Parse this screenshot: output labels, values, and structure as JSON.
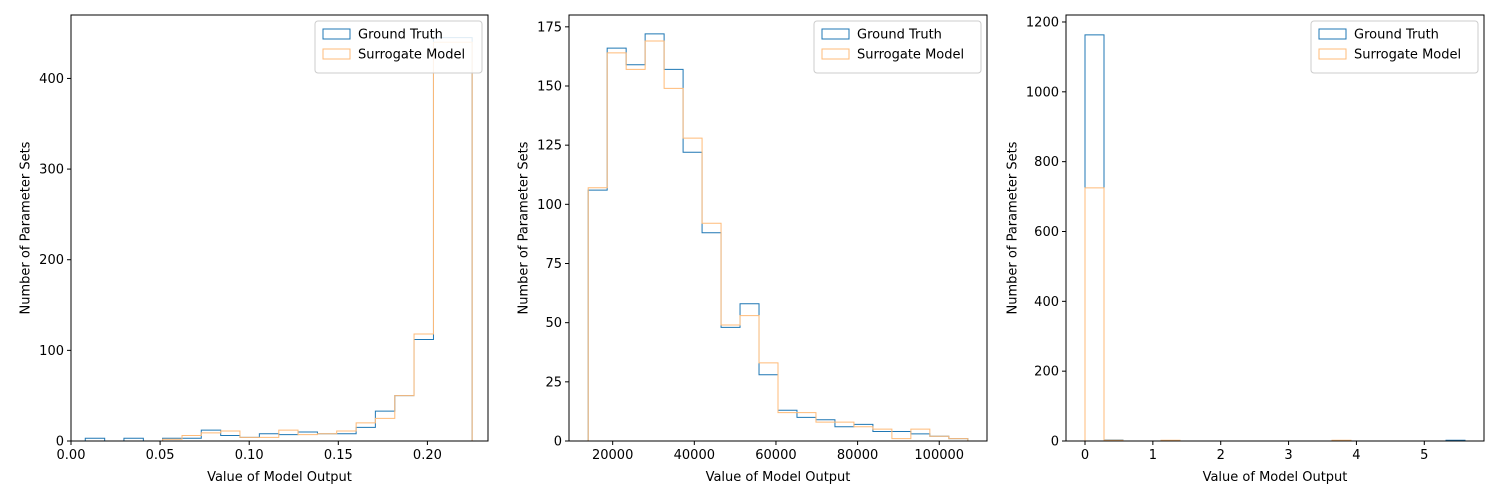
{
  "colors": {
    "ground_truth": "#1f77b4",
    "surrogate": "#ffbb78",
    "axis": "#000000"
  },
  "chart_data": [
    {
      "type": "histogram-step",
      "xlabel": "Value of Model Output",
      "ylabel": "Number of Parameter Sets",
      "xlim": [
        0.0,
        0.234
      ],
      "ylim": [
        0,
        470
      ],
      "xticks": [
        0.0,
        0.05,
        0.1,
        0.15,
        0.2
      ],
      "xtick_labels": [
        "0.00",
        "0.05",
        "0.10",
        "0.15",
        "0.20"
      ],
      "yticks": [
        0,
        100,
        200,
        300,
        400
      ],
      "ytick_labels": [
        "0",
        "100",
        "200",
        "300",
        "400"
      ],
      "legend_position": "top-right",
      "legend": [
        "Ground Truth",
        "Surrogate Model"
      ],
      "series": [
        {
          "name": "Ground Truth",
          "color": "#1f77b4",
          "edges": [
            0.008,
            0.0189,
            0.0297,
            0.0406,
            0.0514,
            0.0623,
            0.0731,
            0.084,
            0.0948,
            0.1057,
            0.1166,
            0.1274,
            0.1383,
            0.1491,
            0.16,
            0.1708,
            0.1817,
            0.1925,
            0.2034,
            0.2143,
            0.2251
          ],
          "counts": [
            3,
            0,
            3,
            0,
            3,
            3,
            12,
            6,
            4,
            8,
            7,
            10,
            8,
            8,
            15,
            33,
            50,
            112,
            445,
            445
          ]
        },
        {
          "name": "Surrogate Model",
          "color": "#ffbb78",
          "edges": [
            0.008,
            0.0189,
            0.0297,
            0.0406,
            0.0514,
            0.0623,
            0.0731,
            0.084,
            0.0948,
            0.1057,
            0.1166,
            0.1274,
            0.1383,
            0.1491,
            0.16,
            0.1708,
            0.1817,
            0.1925,
            0.2034,
            0.2143,
            0.2251
          ],
          "counts": [
            0,
            0,
            0,
            0,
            2,
            6,
            9,
            11,
            4,
            4,
            12,
            7,
            8,
            11,
            20,
            25,
            50,
            118,
            440,
            440
          ]
        }
      ]
    },
    {
      "type": "histogram-step",
      "xlabel": "Value of Model Output",
      "ylabel": "Number of Parameter Sets",
      "xlim": [
        9300,
        111700
      ],
      "ylim": [
        0,
        180
      ],
      "xticks": [
        20000,
        40000,
        60000,
        80000,
        100000
      ],
      "xtick_labels": [
        "20000",
        "40000",
        "60000",
        "80000",
        "100000"
      ],
      "yticks": [
        0,
        25,
        50,
        75,
        100,
        125,
        150,
        175
      ],
      "ytick_labels": [
        "0",
        "25",
        "50",
        "75",
        "100",
        "125",
        "150",
        "175"
      ],
      "legend_position": "top-right",
      "legend": [
        "Ground Truth",
        "Surrogate Model"
      ],
      "series": [
        {
          "name": "Ground Truth",
          "color": "#1f77b4",
          "edges": [
            14000,
            18650,
            23300,
            27950,
            32600,
            37250,
            41900,
            46550,
            51200,
            55850,
            60500,
            65150,
            69800,
            74450,
            79100,
            83750,
            88400,
            93050,
            97700,
            102350,
            107000
          ],
          "counts": [
            106,
            166,
            159,
            172,
            157,
            122,
            88,
            48,
            58,
            28,
            13,
            10,
            9,
            6,
            7,
            4,
            4,
            3,
            2,
            1
          ]
        },
        {
          "name": "Surrogate Model",
          "color": "#ffbb78",
          "edges": [
            14000,
            18650,
            23300,
            27950,
            32600,
            37250,
            41900,
            46550,
            51200,
            55850,
            60500,
            65150,
            69800,
            74450,
            79100,
            83750,
            88400,
            93050,
            97700,
            102350,
            107000
          ],
          "counts": [
            107,
            164,
            157,
            169,
            149,
            128,
            92,
            49,
            53,
            33,
            12,
            12,
            8,
            8,
            6,
            5,
            1,
            5,
            2,
            1
          ]
        }
      ]
    },
    {
      "type": "histogram-step",
      "xlabel": "Value of Model Output",
      "ylabel": "Number of Parameter Sets",
      "xlim": [
        -0.28,
        5.88
      ],
      "ylim": [
        0,
        1220
      ],
      "xticks": [
        0,
        1,
        2,
        3,
        4,
        5
      ],
      "xtick_labels": [
        "0",
        "1",
        "2",
        "3",
        "4",
        "5"
      ],
      "yticks": [
        0,
        200,
        400,
        600,
        800,
        1000,
        1200
      ],
      "ytick_labels": [
        "0",
        "200",
        "400",
        "600",
        "800",
        "1000",
        "1200"
      ],
      "legend_position": "top-right",
      "legend": [
        "Ground Truth",
        "Surrogate Model"
      ],
      "series": [
        {
          "name": "Ground Truth",
          "color": "#1f77b4",
          "edges": [
            0,
            0.28,
            0.56,
            0.84,
            1.12,
            1.4,
            1.68,
            1.96,
            2.24,
            2.52,
            2.8,
            3.08,
            3.36,
            3.64,
            3.92,
            4.2,
            4.48,
            4.76,
            5.04,
            5.32,
            5.6
          ],
          "counts": [
            1163,
            3,
            0,
            0,
            0,
            0,
            0,
            0,
            0,
            0,
            0,
            0,
            0,
            0,
            0,
            0,
            0,
            0,
            0,
            2
          ]
        },
        {
          "name": "Surrogate Model",
          "color": "#ffbb78",
          "edges": [
            0,
            0.28,
            0.56,
            0.84,
            1.12,
            1.4,
            1.68,
            1.96,
            2.24,
            2.52,
            2.8,
            3.08,
            3.36,
            3.64,
            3.92,
            4.2,
            4.48,
            4.76,
            5.04,
            5.32,
            5.6
          ],
          "counts": [
            725,
            2,
            0,
            0,
            2,
            0,
            0,
            0,
            0,
            0,
            0,
            0,
            0,
            2,
            0,
            0,
            0,
            0,
            0,
            0
          ]
        }
      ]
    }
  ]
}
